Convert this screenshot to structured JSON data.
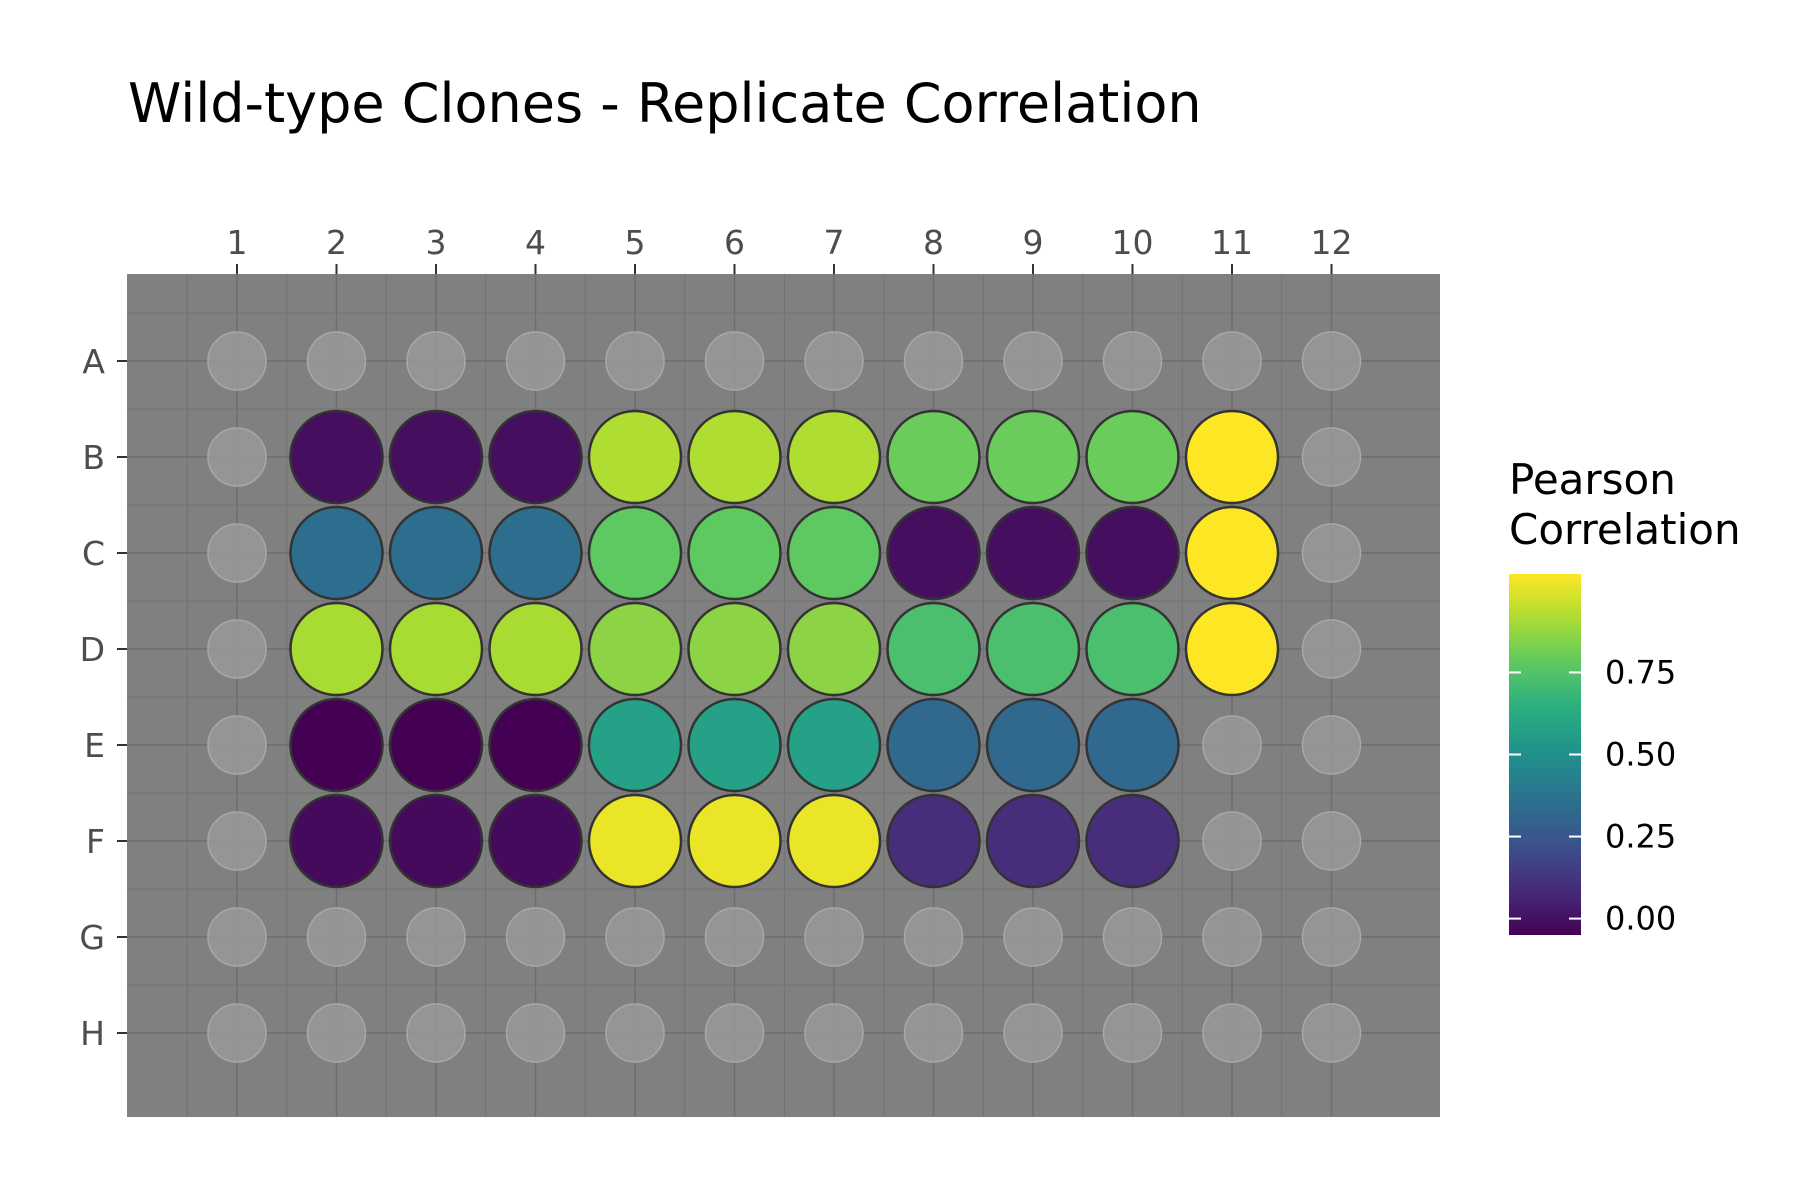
{
  "chart_data": {
    "type": "heatmap",
    "title": "Wild-type Clones - Replicate Correlation",
    "xlabel": "",
    "ylabel": "",
    "columns": [
      "1",
      "2",
      "3",
      "4",
      "5",
      "6",
      "7",
      "8",
      "9",
      "10",
      "11",
      "12"
    ],
    "rows": [
      "A",
      "B",
      "C",
      "D",
      "E",
      "F",
      "G",
      "H"
    ],
    "empty_value": null,
    "values": [
      [
        null,
        null,
        null,
        null,
        null,
        null,
        null,
        null,
        null,
        null,
        null,
        null
      ],
      [
        null,
        -0.01,
        -0.01,
        -0.01,
        0.92,
        0.92,
        0.92,
        0.8,
        0.8,
        0.8,
        1.05,
        null
      ],
      [
        null,
        0.35,
        0.35,
        0.35,
        0.78,
        0.78,
        0.78,
        -0.01,
        -0.01,
        -0.01,
        1.05,
        null
      ],
      [
        null,
        0.91,
        0.91,
        0.91,
        0.86,
        0.86,
        0.86,
        0.73,
        0.73,
        0.73,
        1.05,
        null
      ],
      [
        null,
        -0.05,
        -0.05,
        -0.05,
        0.58,
        0.58,
        0.58,
        0.33,
        0.33,
        0.33,
        null,
        null
      ],
      [
        null,
        -0.02,
        -0.02,
        -0.02,
        1.02,
        1.02,
        1.02,
        0.09,
        0.09,
        0.09,
        null,
        null
      ],
      [
        null,
        null,
        null,
        null,
        null,
        null,
        null,
        null,
        null,
        null,
        null,
        null
      ],
      [
        null,
        null,
        null,
        null,
        null,
        null,
        null,
        null,
        null,
        null,
        null,
        null
      ]
    ],
    "legend": {
      "title_lines": [
        "Pearson",
        "Correlation"
      ],
      "placement": "right",
      "colormap": "viridis",
      "range": [
        -0.05,
        1.05
      ],
      "ticks": [
        0.0,
        0.25,
        0.5,
        0.75
      ],
      "tick_labels": [
        "0.00",
        "0.25",
        "0.50",
        "0.75"
      ]
    },
    "grid": true,
    "background_color": "#808080",
    "grid_color": "#6e6e6e",
    "empty_well_color": "#999999",
    "well_outline_color": "#333333"
  }
}
